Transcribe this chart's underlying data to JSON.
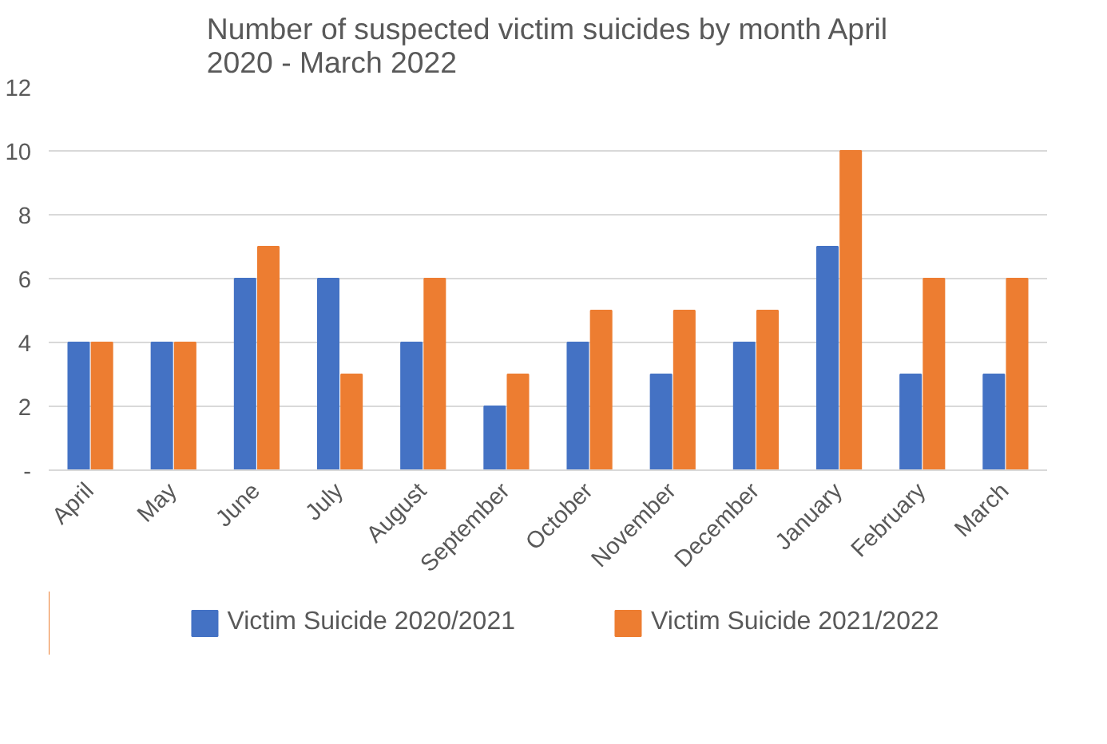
{
  "chart_data": {
    "type": "bar",
    "title": "Number of suspected victim suicides by month April 2020 - March 2022",
    "categories": [
      "April",
      "May",
      "June",
      "July",
      "August",
      "September",
      "October",
      "November",
      "December",
      "January",
      "February",
      "March"
    ],
    "series": [
      {
        "name": "Victim Suicide 2020/2021",
        "color": "#4472c4",
        "values": [
          4,
          4,
          6,
          6,
          4,
          2,
          4,
          3,
          4,
          7,
          3,
          3
        ]
      },
      {
        "name": "Victim Suicide 2021/2022",
        "color": "#ed7d31",
        "values": [
          4,
          4,
          7,
          3,
          6,
          3,
          5,
          5,
          5,
          10,
          6,
          6
        ]
      }
    ],
    "ylim": [
      0,
      12
    ],
    "yticks": [
      {
        "value": 0,
        "label": "-"
      },
      2,
      4,
      6,
      8,
      10,
      12
    ],
    "grid": "y",
    "legend": "bottom"
  }
}
